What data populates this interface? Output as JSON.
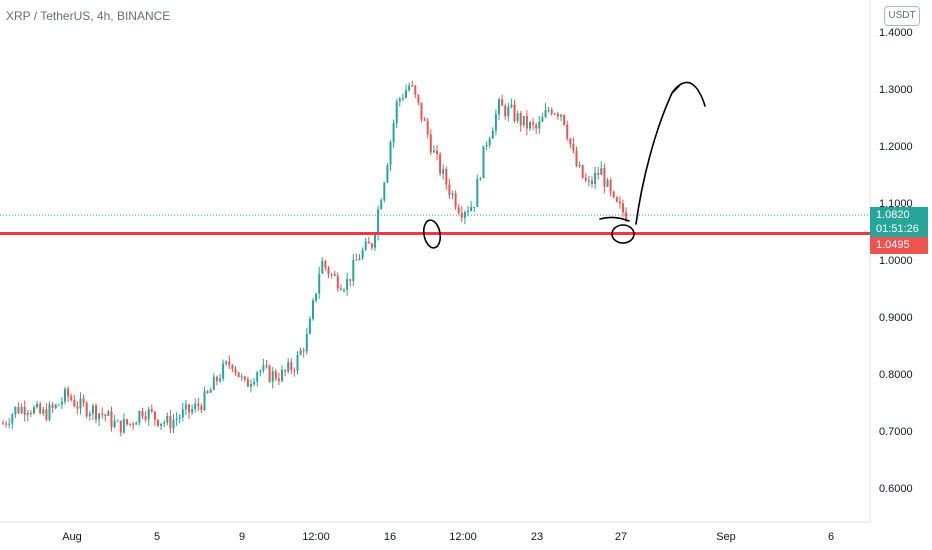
{
  "header": {
    "symbol_title": "XRP / TetherUS, 4h, BINANCE",
    "currency": "USDT"
  },
  "chart_data": {
    "type": "candlestick",
    "y_ticks": [
      "1.4000",
      "1.3000",
      "1.2000",
      "1.1000",
      "1.0000",
      "0.9000",
      "0.8000",
      "0.7000",
      "0.6000"
    ],
    "x_ticks": [
      "Aug",
      "5",
      "9",
      "12:00",
      "16",
      "12:00",
      "23",
      "27",
      "Sep",
      "6"
    ],
    "ylim": [
      0.6,
      1.4
    ],
    "last_price": "1.0820",
    "countdown": "01:51:26",
    "support_level": "1.0495",
    "close_anchors": [
      0.715,
      0.74,
      0.745,
      0.73,
      0.74,
      0.765,
      0.745,
      0.74,
      0.73,
      0.71,
      0.715,
      0.74,
      0.725,
      0.715,
      0.73,
      0.74,
      0.76,
      0.8,
      0.825,
      0.78,
      0.81,
      0.8,
      0.8,
      0.82,
      0.87,
      1.0,
      0.97,
      0.96,
      1.01,
      1.03,
      1.15,
      1.28,
      1.31,
      1.25,
      1.18,
      1.13,
      1.09,
      1.1,
      1.21,
      1.27,
      1.26,
      1.24,
      1.23,
      1.27,
      1.26,
      1.17,
      1.13,
      1.16,
      1.1,
      1.082
    ],
    "candle_count": 202,
    "colors": {
      "up": "#26a69a",
      "down": "#ef5350",
      "support": "#f23645",
      "drawing": "#000000"
    }
  }
}
